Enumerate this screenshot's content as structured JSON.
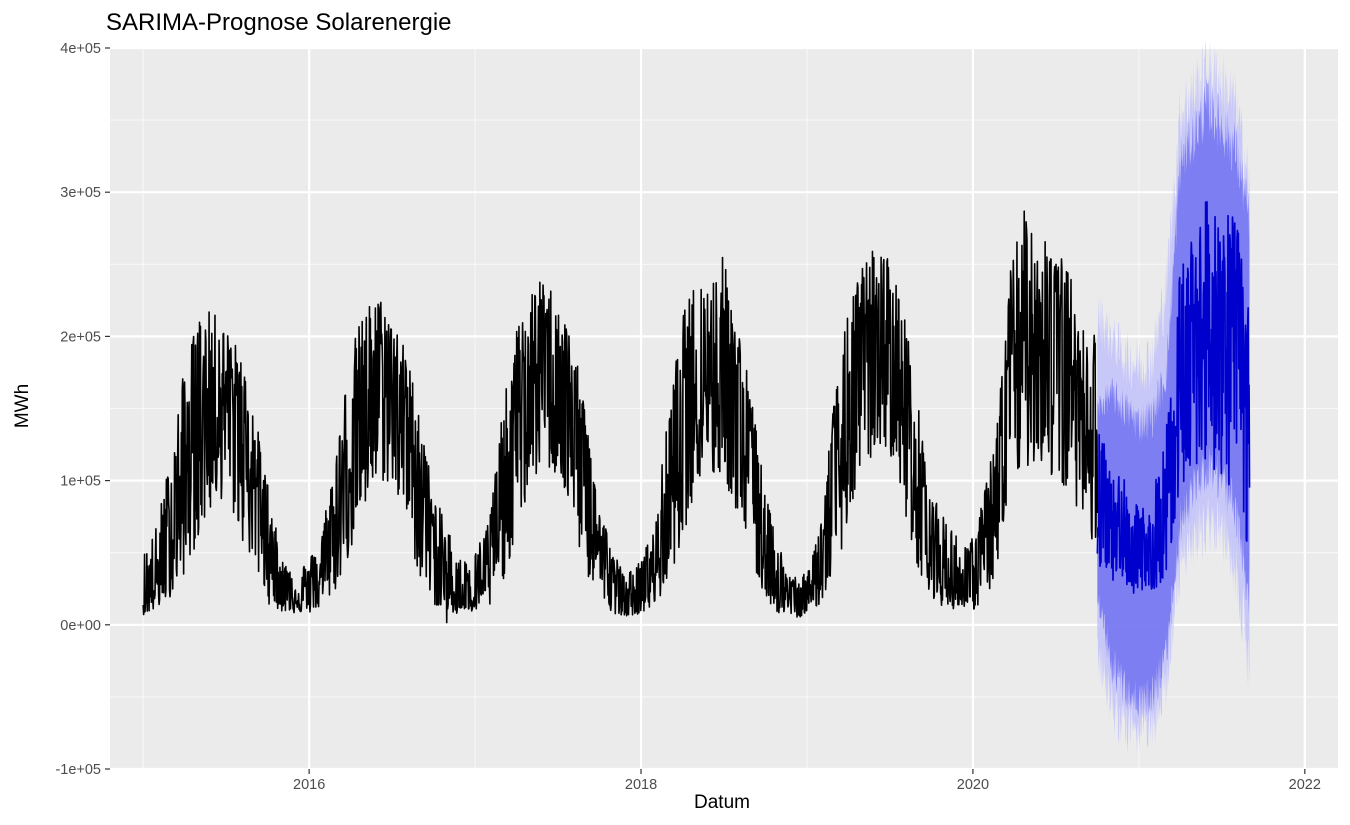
{
  "chart_data": {
    "type": "line",
    "title": "SARIMA-Prognose Solarenergie",
    "xlabel": "Datum",
    "ylabel": "MWh",
    "xlim": [
      2014.8,
      2022.2
    ],
    "ylim": [
      -100000,
      400000
    ],
    "x_ticks": [
      2016,
      2018,
      2020,
      2022
    ],
    "x_tick_labels": [
      "2016",
      "2018",
      "2020",
      "2022"
    ],
    "y_ticks": [
      -100000,
      0,
      100000,
      200000,
      300000,
      400000
    ],
    "y_tick_labels": [
      "-1e+05",
      "0e+00",
      "1e+05",
      "2e+05",
      "3e+05",
      "4e+05"
    ],
    "grid": true,
    "legend": "none",
    "colors": {
      "panel": "#ebebeb",
      "grid": "#ffffff",
      "history": "#000000",
      "forecast": "#0000cc",
      "interval_80": "#7a7af2",
      "interval_95": "#c4c4fa"
    },
    "series": [
      {
        "role": "history",
        "x": [
          "2015-01",
          "2015-02",
          "2015-03",
          "2015-04",
          "2015-05",
          "2015-06",
          "2015-07",
          "2015-08",
          "2015-09",
          "2015-10",
          "2015-11",
          "2015-12",
          "2016-01",
          "2016-02",
          "2016-03",
          "2016-04",
          "2016-05",
          "2016-06",
          "2016-07",
          "2016-08",
          "2016-09",
          "2016-10",
          "2016-11",
          "2016-12",
          "2017-01",
          "2017-02",
          "2017-03",
          "2017-04",
          "2017-05",
          "2017-06",
          "2017-07",
          "2017-08",
          "2017-09",
          "2017-10",
          "2017-11",
          "2017-12",
          "2018-01",
          "2018-02",
          "2018-03",
          "2018-04",
          "2018-05",
          "2018-06",
          "2018-07",
          "2018-08",
          "2018-09",
          "2018-10",
          "2018-11",
          "2018-12",
          "2019-01",
          "2019-02",
          "2019-03",
          "2019-04",
          "2019-05",
          "2019-06",
          "2019-07",
          "2019-08",
          "2019-09",
          "2019-10",
          "2019-11",
          "2019-12",
          "2020-01",
          "2020-02",
          "2020-03",
          "2020-04",
          "2020-05",
          "2020-06",
          "2020-07",
          "2020-08",
          "2020-09",
          "2020-10"
        ],
        "values": [
          18000,
          28000,
          60000,
          105000,
          140000,
          158000,
          160000,
          150000,
          110000,
          60000,
          30000,
          20000,
          22000,
          35000,
          68000,
          120000,
          150000,
          165000,
          168000,
          150000,
          105000,
          55000,
          25000,
          20000,
          25000,
          38000,
          80000,
          140000,
          170000,
          182000,
          178000,
          150000,
          100000,
          55000,
          26000,
          18000,
          22000,
          36000,
          78000,
          140000,
          170000,
          180000,
          178000,
          150000,
          105000,
          56000,
          26000,
          15000,
          18000,
          40000,
          85000,
          140000,
          180000,
          190000,
          190000,
          155000,
          108000,
          58000,
          30000,
          25000,
          30000,
          50000,
          100000,
          175000,
          205000,
          210000,
          205000,
          180000,
          150000,
          160000
        ],
        "range_low": [
          7000,
          10000,
          20000,
          35000,
          60000,
          80000,
          90000,
          60000,
          40000,
          15000,
          9000,
          8000,
          8000,
          12000,
          25000,
          50000,
          75000,
          100000,
          95000,
          70000,
          30000,
          15000,
          0,
          10000,
          8000,
          10000,
          30000,
          60000,
          95000,
          110000,
          100000,
          70000,
          35000,
          18000,
          8000,
          6000,
          8000,
          12000,
          30000,
          60000,
          95000,
          100000,
          100000,
          75000,
          40000,
          18000,
          7000,
          5000,
          6000,
          15000,
          35000,
          70000,
          105000,
          120000,
          120000,
          80000,
          40000,
          20000,
          10000,
          12000,
          10000,
          18000,
          45000,
          100000,
          110000,
          110000,
          95000,
          85000,
          80000,
          38000
        ],
        "range_high": [
          50000,
          70000,
          120000,
          180000,
          215000,
          218000,
          205000,
          190000,
          150000,
          100000,
          45000,
          40000,
          45000,
          70000,
          130000,
          190000,
          220000,
          230000,
          215000,
          190000,
          150000,
          90000,
          70000,
          45000,
          50000,
          75000,
          150000,
          205000,
          230000,
          242000,
          225000,
          200000,
          150000,
          85000,
          50000,
          35000,
          45000,
          70000,
          150000,
          215000,
          240000,
          240000,
          258000,
          210000,
          160000,
          90000,
          55000,
          35000,
          35000,
          75000,
          160000,
          220000,
          250000,
          265000,
          255000,
          220000,
          155000,
          90000,
          75000,
          60000,
          60000,
          100000,
          170000,
          280000,
          290000,
          280000,
          262000,
          245000,
          205000,
          205000
        ]
      },
      {
        "role": "forecast",
        "x": [
          "2020-10",
          "2020-11",
          "2020-12",
          "2021-01",
          "2021-02",
          "2021-03",
          "2021-04",
          "2021-05",
          "2021-06",
          "2021-07",
          "2021-08",
          "2021-09"
        ],
        "values": [
          85000,
          75000,
          55000,
          42000,
          45000,
          75000,
          185000,
          205000,
          215000,
          210000,
          195000,
          160000
        ],
        "range_low": [
          40000,
          30000,
          25000,
          20000,
          22000,
          35000,
          90000,
          110000,
          115000,
          95000,
          95000,
          45000
        ],
        "range_high": [
          140000,
          110000,
          100000,
          80000,
          90000,
          140000,
          250000,
          275000,
          297000,
          290000,
          285000,
          215000
        ],
        "lower_80": [
          20000,
          -25000,
          -45000,
          -55000,
          -50000,
          -20000,
          70000,
          95000,
          110000,
          100000,
          80000,
          20000
        ],
        "upper_80": [
          150000,
          160000,
          150000,
          140000,
          145000,
          175000,
          320000,
          340000,
          360000,
          345000,
          330000,
          280000
        ],
        "lower_95": [
          -20000,
          -55000,
          -70000,
          -75000,
          -72000,
          -40000,
          40000,
          60000,
          70000,
          65000,
          40000,
          -30000
        ],
        "upper_95": [
          215000,
          200000,
          185000,
          180000,
          185000,
          235000,
          355000,
          370000,
          385000,
          375000,
          360000,
          305000
        ]
      }
    ]
  }
}
